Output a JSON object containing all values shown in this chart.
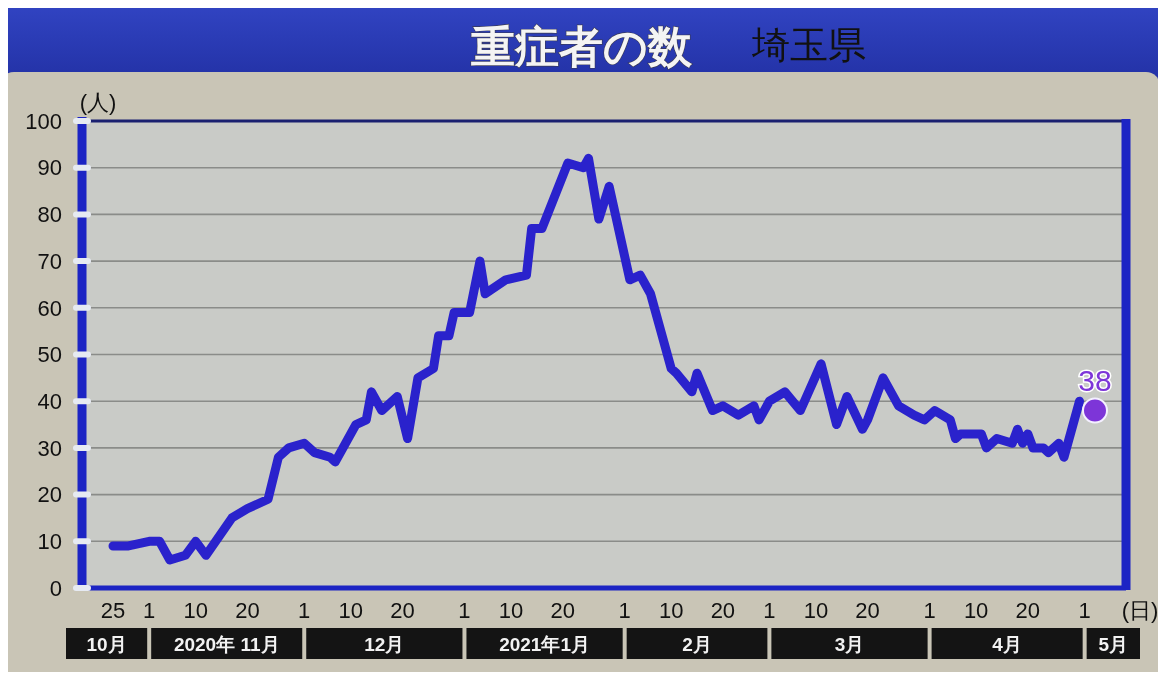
{
  "chart_data": {
    "type": "line",
    "title": "重症者の数",
    "subtitle": "埼玉県",
    "xlabel": "(日)",
    "ylabel": "(人)",
    "xlim": [
      "2020-10-19",
      "2021-05-09"
    ],
    "xticks": [
      {
        "value": "2020-10-25",
        "label": "25"
      },
      {
        "value": "2020-11-01",
        "label": "1"
      },
      {
        "value": "2020-11-10",
        "label": "10"
      },
      {
        "value": "2020-11-20",
        "label": "20"
      },
      {
        "value": "2020-12-01",
        "label": "1"
      },
      {
        "value": "2020-12-10",
        "label": "10"
      },
      {
        "value": "2020-12-20",
        "label": "20"
      },
      {
        "value": "2021-01-01",
        "label": "1"
      },
      {
        "value": "2021-01-10",
        "label": "10"
      },
      {
        "value": "2021-01-20",
        "label": "20"
      },
      {
        "value": "2021-02-01",
        "label": "1"
      },
      {
        "value": "2021-02-10",
        "label": "10"
      },
      {
        "value": "2021-02-20",
        "label": "20"
      },
      {
        "value": "2021-03-01",
        "label": "1"
      },
      {
        "value": "2021-03-10",
        "label": "10"
      },
      {
        "value": "2021-03-20",
        "label": "20"
      },
      {
        "value": "2021-04-01",
        "label": "1"
      },
      {
        "value": "2021-04-10",
        "label": "10"
      },
      {
        "value": "2021-04-20",
        "label": "20"
      },
      {
        "value": "2021-05-01",
        "label": "1"
      }
    ],
    "ylim": [
      0,
      100
    ],
    "yticks": [
      0,
      10,
      20,
      30,
      40,
      50,
      60,
      70,
      80,
      90,
      100
    ],
    "grid": "y",
    "series": [
      {
        "color": "#2a22cc",
        "x": [
          "2020-10-25",
          "2020-10-28",
          "2020-11-01",
          "2020-11-03",
          "2020-11-05",
          "2020-11-08",
          "2020-11-10",
          "2020-11-12",
          "2020-11-17",
          "2020-11-20",
          "2020-11-24",
          "2020-11-26",
          "2020-11-28",
          "2020-12-01",
          "2020-12-03",
          "2020-12-06",
          "2020-12-07",
          "2020-12-11",
          "2020-12-13",
          "2020-12-14",
          "2020-12-16",
          "2020-12-19",
          "2020-12-21",
          "2020-12-23",
          "2020-12-26",
          "2020-12-27",
          "2020-12-29",
          "2020-12-30",
          "2021-01-02",
          "2021-01-04",
          "2021-01-05",
          "2021-01-09",
          "2021-01-13",
          "2021-01-14",
          "2021-01-16",
          "2021-01-21",
          "2021-01-24",
          "2021-01-25",
          "2021-01-27",
          "2021-01-29",
          "2021-02-02",
          "2021-02-04",
          "2021-02-06",
          "2021-02-08",
          "2021-02-10",
          "2021-02-11",
          "2021-02-14",
          "2021-02-15",
          "2021-02-18",
          "2021-02-20",
          "2021-02-23",
          "2021-02-26",
          "2021-02-27",
          "2021-03-01",
          "2021-03-04",
          "2021-03-07",
          "2021-03-11",
          "2021-03-14",
          "2021-03-16",
          "2021-03-19",
          "2021-03-20",
          "2021-03-23",
          "2021-03-26",
          "2021-03-29",
          "2021-03-31",
          "2021-04-02",
          "2021-04-05",
          "2021-04-06",
          "2021-04-07",
          "2021-04-11",
          "2021-04-12",
          "2021-04-14",
          "2021-04-17",
          "2021-04-18",
          "2021-04-19",
          "2021-04-20",
          "2021-04-21",
          "2021-04-23",
          "2021-04-24",
          "2021-04-26",
          "2021-04-27",
          "2021-04-30"
        ],
        "values": [
          9,
          9,
          10,
          10,
          6,
          7,
          10,
          7,
          15,
          17,
          19,
          28,
          30,
          31,
          29,
          28,
          27,
          35,
          36,
          42,
          38,
          41,
          32,
          45,
          47,
          54,
          54,
          59,
          59,
          70,
          63,
          66,
          67,
          77,
          77,
          91,
          90,
          92,
          79,
          86,
          66,
          67,
          63,
          55,
          47,
          46,
          42,
          46,
          38,
          39,
          37,
          39,
          36,
          40,
          42,
          38,
          48,
          35,
          41,
          34,
          36,
          45,
          39,
          37,
          36,
          38,
          36,
          32,
          33,
          33,
          30,
          32,
          31,
          34,
          31,
          33,
          30,
          30,
          29,
          31,
          28,
          40
        ]
      },
      {
        "type": "scatter",
        "color": "#7d35d8",
        "x": [
          "2021-05-03"
        ],
        "values": [
          38
        ],
        "value_labels": [
          "38"
        ]
      }
    ],
    "annotations": [
      "10月",
      "2020年 11月",
      "12月",
      "2021年1月",
      "2月",
      "3月",
      "4月",
      "5月"
    ]
  }
}
